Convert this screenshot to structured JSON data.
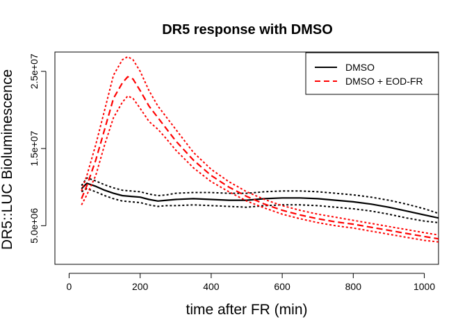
{
  "chart_data": {
    "type": "line",
    "title": "DR5 response with DMSO",
    "xlabel": "time after FR (min)",
    "ylabel": "DR5::LUC Bioluminescence",
    "xlim": [
      -40,
      1040
    ],
    "ylim": [
      0,
      27500000
    ],
    "xticks": [
      0,
      200,
      400,
      600,
      800,
      1000
    ],
    "xtick_labels": [
      "0",
      "200",
      "400",
      "600",
      "800",
      "1000"
    ],
    "yticks": [
      5000000,
      15000000,
      25000000
    ],
    "ytick_labels": [
      "5.0e+06",
      "1.5e+07",
      "2.5e+07"
    ],
    "legend": {
      "position": "top-right",
      "entries": [
        {
          "label": "DMSO",
          "color": "#000000",
          "dash": "solid"
        },
        {
          "label": "DMSO + EOD-FR",
          "color": "#ff0000",
          "dash": "dashed"
        }
      ]
    },
    "series": [
      {
        "name": "DMSO",
        "color": "#000000",
        "x": [
          35,
          50,
          75,
          100,
          125,
          150,
          175,
          200,
          225,
          250,
          275,
          300,
          350,
          400,
          450,
          500,
          550,
          600,
          650,
          700,
          750,
          800,
          850,
          900,
          950,
          1000,
          1040
        ],
        "mean": [
          9800000,
          10500000,
          10100000,
          9600000,
          9200000,
          8900000,
          8800000,
          8700000,
          8400000,
          8200000,
          8300000,
          8400000,
          8500000,
          8400000,
          8300000,
          8300000,
          8500000,
          8600000,
          8600000,
          8500000,
          8300000,
          8100000,
          7800000,
          7400000,
          6900000,
          6400000,
          6000000
        ],
        "upper": [
          10200000,
          11200000,
          10800000,
          10300000,
          9900000,
          9600000,
          9500000,
          9400000,
          9100000,
          8900000,
          9000000,
          9200000,
          9300000,
          9300000,
          9200000,
          9200000,
          9400000,
          9500000,
          9500000,
          9400000,
          9200000,
          9000000,
          8700000,
          8300000,
          7800000,
          7200000,
          6600000
        ],
        "lower": [
          9400000,
          9800000,
          9400000,
          8900000,
          8500000,
          8200000,
          8100000,
          8000000,
          7700000,
          7500000,
          7600000,
          7600000,
          7700000,
          7600000,
          7500000,
          7400000,
          7600000,
          7700000,
          7700000,
          7600000,
          7400000,
          7200000,
          6900000,
          6500000,
          6000000,
          5600000,
          5400000
        ]
      },
      {
        "name": "DMSO + EOD-FR",
        "color": "#ff0000",
        "x": [
          35,
          50,
          75,
          100,
          125,
          150,
          165,
          180,
          200,
          225,
          250,
          275,
          300,
          350,
          400,
          450,
          500,
          550,
          600,
          650,
          700,
          750,
          800,
          850,
          900,
          950,
          1000,
          1040
        ],
        "mean": [
          8500000,
          10200000,
          13500000,
          17500000,
          21500000,
          23500000,
          24300000,
          24000000,
          22500000,
          20500000,
          19000000,
          17500000,
          16000000,
          13500000,
          11500000,
          10000000,
          8800000,
          7800000,
          7000000,
          6400000,
          5900000,
          5500000,
          5200000,
          4800000,
          4400000,
          4000000,
          3600000,
          3300000
        ],
        "upper": [
          9500000,
          11500000,
          15500000,
          20000000,
          24500000,
          26500000,
          26900000,
          26500000,
          25000000,
          22500000,
          20500000,
          19000000,
          17500000,
          14500000,
          12300000,
          10700000,
          9400000,
          8400000,
          7600000,
          7000000,
          6500000,
          6100000,
          5700000,
          5300000,
          4900000,
          4500000,
          4100000,
          3800000
        ],
        "lower": [
          7700000,
          9000000,
          11500000,
          15500000,
          19000000,
          21000000,
          21800000,
          21500000,
          20200000,
          18500000,
          17500000,
          16200000,
          14800000,
          12500000,
          10700000,
          9400000,
          8200000,
          7300000,
          6500000,
          5900000,
          5400000,
          5000000,
          4700000,
          4300000,
          3900000,
          3500000,
          3100000,
          2900000
        ]
      }
    ]
  }
}
